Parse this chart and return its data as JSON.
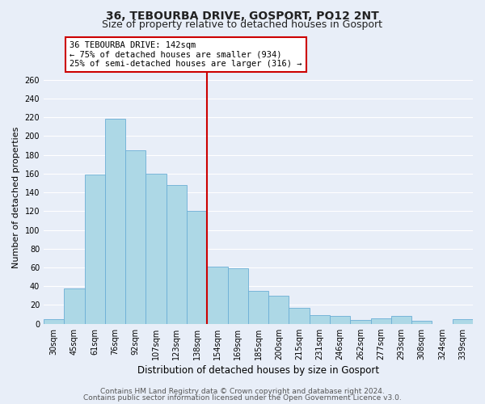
{
  "title": "36, TEBOURBA DRIVE, GOSPORT, PO12 2NT",
  "subtitle": "Size of property relative to detached houses in Gosport",
  "xlabel": "Distribution of detached houses by size in Gosport",
  "ylabel": "Number of detached properties",
  "bar_labels": [
    "30sqm",
    "45sqm",
    "61sqm",
    "76sqm",
    "92sqm",
    "107sqm",
    "123sqm",
    "138sqm",
    "154sqm",
    "169sqm",
    "185sqm",
    "200sqm",
    "215sqm",
    "231sqm",
    "246sqm",
    "262sqm",
    "277sqm",
    "293sqm",
    "308sqm",
    "324sqm",
    "339sqm"
  ],
  "bar_values": [
    5,
    38,
    159,
    218,
    185,
    160,
    148,
    120,
    61,
    59,
    35,
    30,
    17,
    9,
    8,
    4,
    6,
    8,
    3,
    0,
    5
  ],
  "bar_color": "#add8e6",
  "bar_edge_color": "#6baed6",
  "vline_x": 7.5,
  "vline_color": "#cc0000",
  "annotation_line1": "36 TEBOURBA DRIVE: 142sqm",
  "annotation_line2": "← 75% of detached houses are smaller (934)",
  "annotation_line3": "25% of semi-detached houses are larger (316) →",
  "box_edge_color": "#cc0000",
  "ylim": [
    0,
    270
  ],
  "yticks": [
    0,
    20,
    40,
    60,
    80,
    100,
    120,
    140,
    160,
    180,
    200,
    220,
    240,
    260
  ],
  "footer_line1": "Contains HM Land Registry data © Crown copyright and database right 2024.",
  "footer_line2": "Contains public sector information licensed under the Open Government Licence v3.0.",
  "background_color": "#e8eef8",
  "grid_color": "#ffffff",
  "title_fontsize": 10,
  "subtitle_fontsize": 9,
  "tick_fontsize": 7,
  "ylabel_fontsize": 8,
  "xlabel_fontsize": 8.5,
  "footer_fontsize": 6.5
}
